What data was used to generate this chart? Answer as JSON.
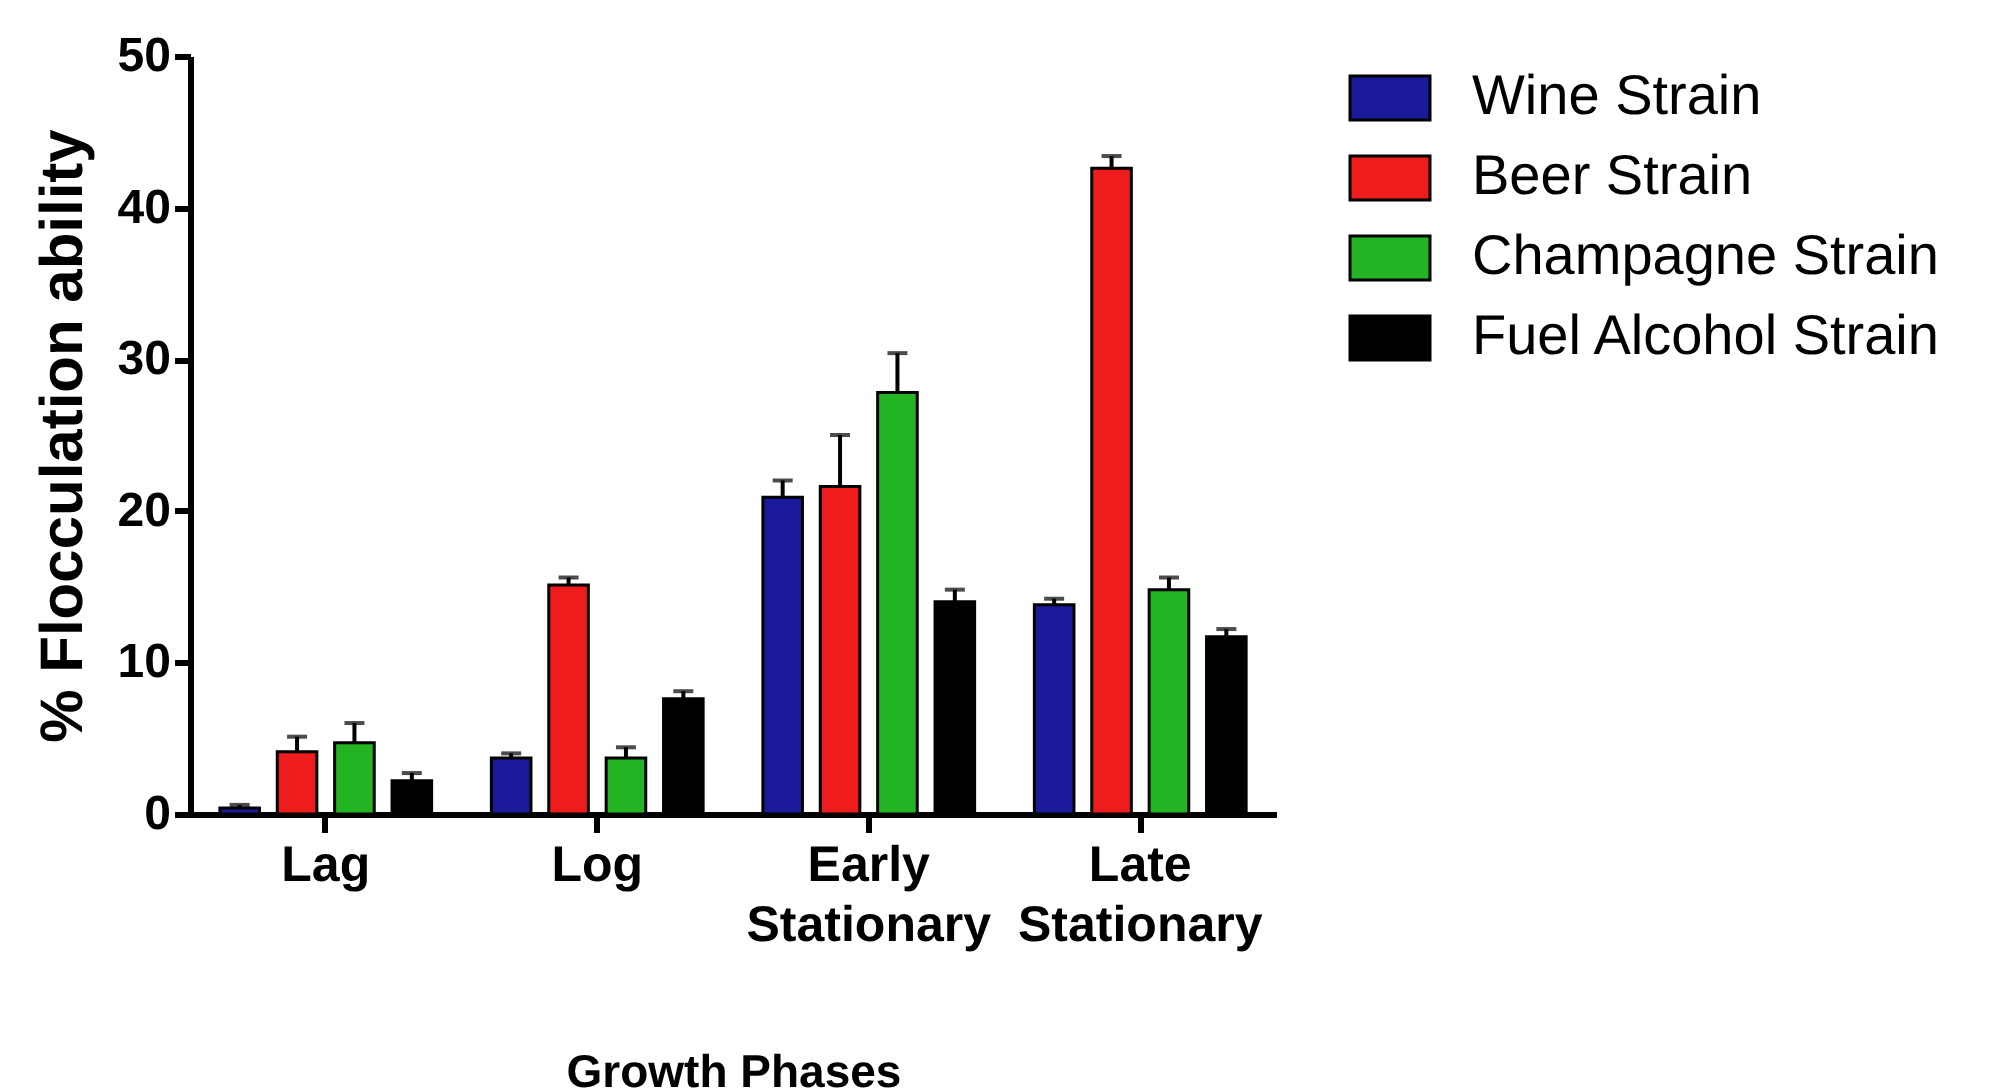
{
  "chart_data": {
    "type": "bar",
    "xlabel": "Growth Phases",
    "ylabel": "% Flocculation ability",
    "categories": [
      "Lag",
      "Log",
      "Early Stationary",
      "Late Stationary"
    ],
    "series": [
      {
        "name": "Wine Strain",
        "color": "#1a1a9a",
        "values": [
          0.4,
          3.7,
          20.9,
          13.8
        ],
        "errors": [
          [
            0.4,
            0.6
          ],
          [
            3.7,
            4.0
          ],
          [
            20.9,
            22.0
          ],
          [
            13.8,
            14.2
          ]
        ]
      },
      {
        "name": "Beer  Strain",
        "color": "#ee1c1c",
        "values": [
          4.1,
          15.1,
          21.6,
          42.6
        ],
        "errors": [
          [
            4.1,
            5.1
          ],
          [
            15.1,
            15.6
          ],
          [
            21.6,
            25.0
          ],
          [
            42.6,
            43.4
          ]
        ]
      },
      {
        "name": "Champagne  Strain",
        "color": "#22b422",
        "values": [
          4.7,
          3.7,
          27.8,
          14.8
        ],
        "errors": [
          [
            4.7,
            6.0
          ],
          [
            3.7,
            4.4
          ],
          [
            27.8,
            30.4
          ],
          [
            14.8,
            15.6
          ]
        ]
      },
      {
        "name": "Fuel Alcohol Strain",
        "color": "#000000",
        "values": [
          2.2,
          7.6,
          14.0,
          11.7
        ],
        "errors": [
          [
            2.2,
            2.7
          ],
          [
            7.6,
            8.1
          ],
          [
            14.0,
            14.8
          ],
          [
            11.7,
            12.2
          ]
        ]
      }
    ],
    "ylim": [
      0,
      50
    ],
    "yticks": [
      0,
      10,
      20,
      30,
      40,
      50
    ],
    "legend": "right"
  }
}
